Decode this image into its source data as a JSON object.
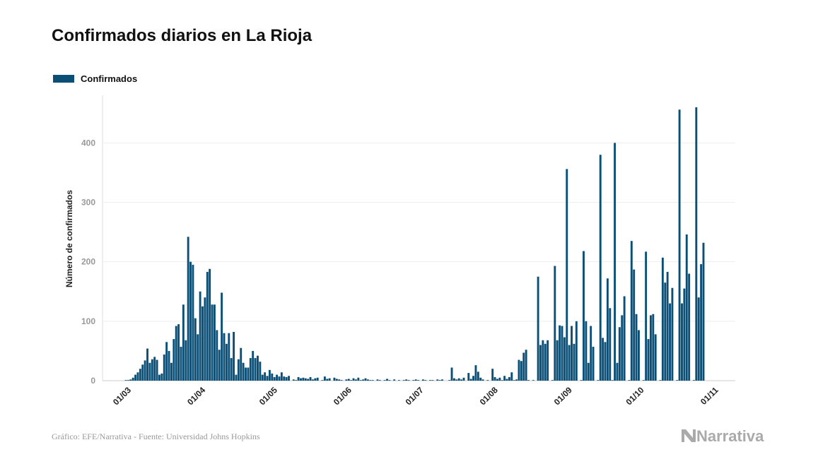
{
  "chart_data": {
    "type": "bar",
    "title": "Confirmados diarios en La Rioja",
    "y_label": "Número de confirmados",
    "source": "Gráfico: EFE/Narrativa - Fuente: Universidad Johns Hopkins",
    "brand": "Narrativa",
    "ylim": [
      0,
      480
    ],
    "yticks": [
      0,
      100,
      200,
      300,
      400
    ],
    "grid": true,
    "categories": [
      null,
      null,
      null,
      null,
      null,
      null,
      null,
      null,
      null,
      "01/03",
      null,
      null,
      null,
      null,
      null,
      null,
      null,
      null,
      null,
      null,
      null,
      null,
      null,
      null,
      null,
      null,
      null,
      null,
      null,
      null,
      null,
      null,
      null,
      null,
      null,
      null,
      null,
      null,
      null,
      null,
      "01/04",
      null,
      null,
      null,
      null,
      null,
      null,
      null,
      null,
      null,
      null,
      null,
      null,
      null,
      null,
      null,
      null,
      null,
      null,
      null,
      null,
      null,
      null,
      null,
      null,
      null,
      null,
      null,
      null,
      null,
      "01/05",
      null,
      null,
      null,
      null,
      null,
      null,
      null,
      null,
      null,
      null,
      null,
      null,
      null,
      null,
      null,
      null,
      null,
      null,
      null,
      null,
      null,
      null,
      null,
      null,
      null,
      null,
      null,
      null,
      null,
      null,
      "01/06",
      null,
      null,
      null,
      null,
      null,
      null,
      null,
      null,
      null,
      null,
      null,
      null,
      null,
      null,
      null,
      null,
      null,
      null,
      null,
      null,
      null,
      null,
      null,
      null,
      null,
      null,
      null,
      null,
      null,
      "01/07",
      null,
      null,
      null,
      null,
      null,
      null,
      null,
      null,
      null,
      null,
      null,
      null,
      null,
      null,
      null,
      null,
      null,
      null,
      null,
      null,
      null,
      null,
      null,
      null,
      null,
      null,
      null,
      null,
      null,
      null,
      "01/08",
      null,
      null,
      null,
      null,
      null,
      null,
      null,
      null,
      null,
      null,
      null,
      null,
      null,
      null,
      null,
      null,
      null,
      null,
      null,
      null,
      null,
      null,
      null,
      null,
      null,
      null,
      null,
      null,
      null,
      null,
      "01/09",
      null,
      null,
      null,
      null,
      null,
      null,
      null,
      null,
      null,
      null,
      null,
      null,
      null,
      null,
      null,
      null,
      null,
      null,
      null,
      null,
      null,
      null,
      null,
      null,
      null,
      null,
      null,
      null,
      null,
      "01/10",
      null,
      null,
      null,
      null,
      null,
      null,
      null,
      null,
      null,
      null,
      null,
      null,
      null,
      null,
      null,
      null,
      null,
      null,
      null,
      null,
      null,
      null,
      null,
      null,
      null,
      null,
      null,
      null,
      null,
      null,
      "01/11"
    ],
    "series": [
      {
        "name": "Confirmados",
        "color": "#0b4f77",
        "values": [
          0,
          0,
          0,
          0,
          0,
          0,
          0,
          0,
          0,
          1,
          1,
          2,
          5,
          10,
          14,
          20,
          27,
          34,
          54,
          30,
          36,
          40,
          35,
          10,
          12,
          44,
          65,
          50,
          30,
          70,
          92,
          95,
          57,
          128,
          68,
          242,
          200,
          195,
          105,
          78,
          150,
          125,
          140,
          183,
          188,
          128,
          128,
          85,
          52,
          148,
          80,
          62,
          80,
          38,
          82,
          10,
          36,
          55,
          30,
          22,
          22,
          38,
          50,
          38,
          42,
          32,
          10,
          14,
          8,
          18,
          12,
          6,
          10,
          7,
          14,
          7,
          6,
          8,
          0,
          2,
          1,
          6,
          4,
          5,
          4,
          3,
          6,
          2,
          4,
          5,
          0,
          1,
          7,
          3,
          4,
          0,
          5,
          3,
          2,
          1,
          0,
          2,
          3,
          1,
          4,
          2,
          5,
          1,
          2,
          4,
          2,
          1,
          1,
          0,
          2,
          1,
          0,
          1,
          3,
          1,
          0,
          2,
          0,
          1,
          0,
          1,
          2,
          1,
          0,
          1,
          2,
          1,
          0,
          2,
          1,
          0,
          1,
          1,
          0,
          2,
          1,
          2,
          0,
          0,
          1,
          22,
          4,
          2,
          4,
          2,
          5,
          0,
          13,
          3,
          8,
          26,
          15,
          5,
          2,
          0,
          1,
          0,
          20,
          6,
          3,
          5,
          1,
          8,
          3,
          6,
          14,
          1,
          2,
          35,
          33,
          47,
          52,
          1,
          0,
          1,
          0,
          175,
          60,
          68,
          62,
          68,
          0,
          1,
          193,
          68,
          93,
          92,
          73,
          356,
          60,
          92,
          62,
          100,
          0,
          1,
          218,
          100,
          30,
          92,
          57,
          0,
          1,
          380,
          72,
          65,
          172,
          122,
          1,
          400,
          30,
          90,
          110,
          142,
          0,
          1,
          235,
          187,
          112,
          85,
          0,
          1,
          217,
          70,
          110,
          112,
          78,
          0,
          1,
          207,
          165,
          183,
          130,
          156,
          0,
          1,
          456,
          130,
          155,
          246,
          180,
          0,
          1,
          460,
          140,
          196,
          232,
          0,
          0,
          0,
          null
        ]
      }
    ]
  }
}
